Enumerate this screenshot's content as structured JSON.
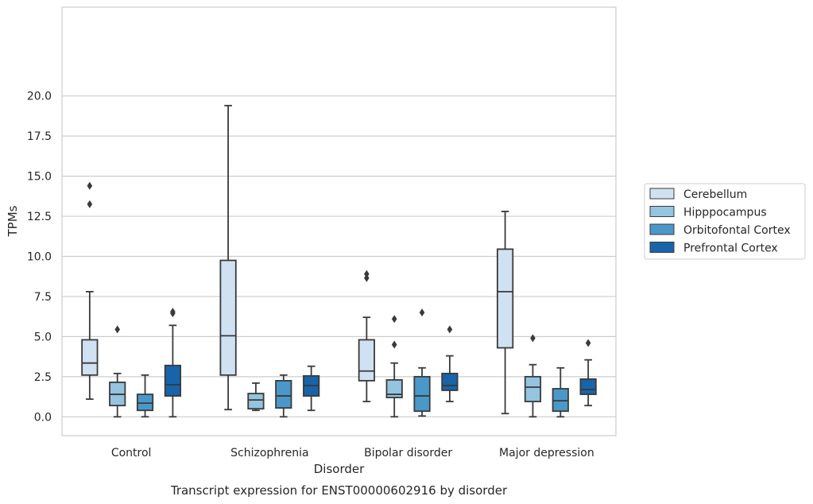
{
  "caption": "Transcript expression for ENST00000602916 by disorder",
  "chart_data": {
    "type": "box",
    "xlabel": "Disorder",
    "ylabel": "TPMs",
    "ylim": [
      -0.9,
      20.4
    ],
    "yticks": [
      "0.0",
      "2.5",
      "5.0",
      "7.5",
      "10.0",
      "12.5",
      "15.0",
      "17.5",
      "20.0"
    ],
    "ytick_values": [
      0,
      2.5,
      5,
      7.5,
      10,
      12.5,
      15,
      17.5,
      20
    ],
    "grid": true,
    "legend_position": "right",
    "categories": [
      "Control",
      "Schizophrenia",
      "Bipolar disorder",
      "Major depression"
    ],
    "series": [
      {
        "name": "Cerebellum",
        "color": "#d0e1f2",
        "boxes": [
          {
            "whislo": 1.1,
            "q1": 2.6,
            "med": 3.35,
            "q3": 4.8,
            "whishi": 7.8,
            "fliers": [
              13.25,
              14.4
            ]
          },
          {
            "whislo": 0.45,
            "q1": 2.6,
            "med": 5.05,
            "q3": 9.75,
            "whishi": 19.4,
            "fliers": []
          },
          {
            "whislo": 0.95,
            "q1": 2.25,
            "med": 2.85,
            "q3": 4.8,
            "whishi": 6.2,
            "fliers": [
              8.65,
              8.9
            ]
          },
          {
            "whislo": 0.2,
            "q1": 4.3,
            "med": 7.8,
            "q3": 10.45,
            "whishi": 12.8,
            "fliers": []
          }
        ]
      },
      {
        "name": "Hipppocampus",
        "color": "#94c4df",
        "boxes": [
          {
            "whislo": 0.0,
            "q1": 0.7,
            "med": 1.4,
            "q3": 2.15,
            "whishi": 2.7,
            "fliers": [
              5.45
            ]
          },
          {
            "whislo": 0.4,
            "q1": 0.5,
            "med": 1.05,
            "q3": 1.45,
            "whishi": 2.1,
            "fliers": []
          },
          {
            "whislo": 0.0,
            "q1": 1.2,
            "med": 1.4,
            "q3": 2.3,
            "whishi": 3.35,
            "fliers": [
              4.5,
              6.1
            ]
          },
          {
            "whislo": 0.0,
            "q1": 0.95,
            "med": 1.85,
            "q3": 2.5,
            "whishi": 3.25,
            "fliers": [
              4.9
            ]
          }
        ]
      },
      {
        "name": "Orbitofontal Cortex",
        "color": "#4a98c9",
        "boxes": [
          {
            "whislo": 0.0,
            "q1": 0.4,
            "med": 0.85,
            "q3": 1.4,
            "whishi": 2.6,
            "fliers": []
          },
          {
            "whislo": 0.0,
            "q1": 0.55,
            "med": 1.3,
            "q3": 2.25,
            "whishi": 2.6,
            "fliers": []
          },
          {
            "whislo": 0.05,
            "q1": 0.35,
            "med": 1.3,
            "q3": 2.5,
            "whishi": 3.05,
            "fliers": [
              6.5
            ]
          },
          {
            "whislo": 0.0,
            "q1": 0.35,
            "med": 1.0,
            "q3": 1.75,
            "whishi": 3.05,
            "fliers": []
          }
        ]
      },
      {
        "name": "Prefrontal Cortex",
        "color": "#1764ab",
        "boxes": [
          {
            "whislo": 0.0,
            "q1": 1.3,
            "med": 2.0,
            "q3": 3.2,
            "whishi": 5.7,
            "fliers": [
              6.45,
              6.55
            ]
          },
          {
            "whislo": 0.4,
            "q1": 1.3,
            "med": 1.95,
            "q3": 2.55,
            "whishi": 3.15,
            "fliers": []
          },
          {
            "whislo": 0.95,
            "q1": 1.65,
            "med": 1.95,
            "q3": 2.7,
            "whishi": 3.8,
            "fliers": [
              5.45
            ]
          },
          {
            "whislo": 0.7,
            "q1": 1.4,
            "med": 1.7,
            "q3": 2.35,
            "whishi": 3.55,
            "fliers": [
              4.6
            ]
          }
        ]
      }
    ]
  }
}
